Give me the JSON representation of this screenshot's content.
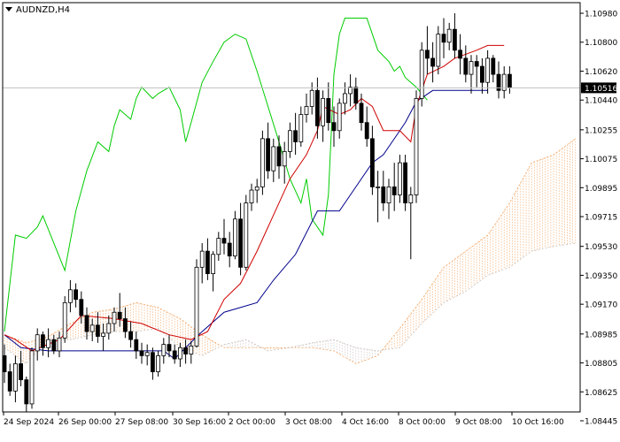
{
  "chart_data": {
    "type": "candlestick",
    "symbol": "AUDNZD,H4",
    "current_price": "1.10516",
    "y_ticks": [
      1.1098,
      1.108,
      1.1062,
      1.10516,
      1.1044,
      1.10255,
      1.10075,
      1.09895,
      1.09715,
      1.0953,
      1.0935,
      1.0917,
      1.08985,
      1.08805,
      1.08625,
      1.08445
    ],
    "ylim": [
      1.08445,
      1.1098
    ],
    "x_labels": [
      "24 Sep 2024",
      "26 Sep 00:00",
      "27 Sep 08:00",
      "30 Sep 16:00",
      "2 Oct 00:00",
      "3 Oct 08:00",
      "4 Oct 16:00",
      "8 Oct 00:00",
      "9 Oct 08:00",
      "10 Oct 16:00"
    ],
    "colors": {
      "candle_bull": "#ffffff",
      "candle_bear": "#000000",
      "tenkan": "#d00000",
      "kijun": "#00008b",
      "chikou": "#00cc00",
      "cloud_a": "#f4a460",
      "cloud_b": "#c9c0bb",
      "current_line": "#c0c0c0",
      "price_tag_bg": "#000000"
    },
    "candles": [
      [
        1.0885,
        1.0892,
        1.0868,
        1.0875
      ],
      [
        1.0875,
        1.088,
        1.086,
        1.0863
      ],
      [
        1.0863,
        1.0885,
        1.0856,
        1.088
      ],
      [
        1.088,
        1.0888,
        1.0866,
        1.087
      ],
      [
        1.087,
        1.0872,
        1.085,
        1.0855
      ],
      [
        1.0855,
        1.089,
        1.0852,
        1.0888
      ],
      [
        1.0888,
        1.0902,
        1.0882,
        1.0898
      ],
      [
        1.0898,
        1.09,
        1.0885,
        1.089
      ],
      [
        1.089,
        1.0902,
        1.0884,
        1.0895
      ],
      [
        1.0895,
        1.0898,
        1.0886,
        1.0888
      ],
      [
        1.0888,
        1.09,
        1.0884,
        1.0896
      ],
      [
        1.0896,
        1.0922,
        1.0893,
        1.0918
      ],
      [
        1.0918,
        1.0932,
        1.0912,
        1.0926
      ],
      [
        1.0926,
        1.093,
        1.0915,
        1.092
      ],
      [
        1.092,
        1.0925,
        1.0905,
        1.091
      ],
      [
        1.091,
        1.0915,
        1.0895,
        1.09
      ],
      [
        1.09,
        1.0908,
        1.0894,
        1.0904
      ],
      [
        1.0904,
        1.0912,
        1.0893,
        1.0897
      ],
      [
        1.0897,
        1.0905,
        1.0888,
        1.0899
      ],
      [
        1.0899,
        1.091,
        1.0895,
        1.0905
      ],
      [
        1.0905,
        1.0915,
        1.09,
        1.0912
      ],
      [
        1.0912,
        1.0924,
        1.0903,
        1.0908
      ],
      [
        1.0908,
        1.0915,
        1.0896,
        1.09
      ],
      [
        1.09,
        1.0906,
        1.089,
        1.0895
      ],
      [
        1.0895,
        1.09,
        1.0883,
        1.0888
      ],
      [
        1.0888,
        1.0893,
        1.088,
        1.0885
      ],
      [
        1.0885,
        1.0892,
        1.0879,
        1.0887
      ],
      [
        1.0887,
        1.089,
        1.087,
        1.0875
      ],
      [
        1.0875,
        1.0888,
        1.0872,
        1.0885
      ],
      [
        1.0885,
        1.0896,
        1.088,
        1.0892
      ],
      [
        1.0892,
        1.0898,
        1.0884,
        1.0888
      ],
      [
        1.0888,
        1.0892,
        1.088,
        1.0883
      ],
      [
        1.0883,
        1.0893,
        1.0878,
        1.089
      ],
      [
        1.089,
        1.0895,
        1.088,
        1.0886
      ],
      [
        1.0886,
        1.0894,
        1.088,
        1.0891
      ],
      [
        1.0891,
        1.0945,
        1.089,
        1.094
      ],
      [
        1.094,
        1.0955,
        1.093,
        1.095
      ],
      [
        1.095,
        1.0958,
        1.0932,
        1.0936
      ],
      [
        1.0936,
        1.095,
        1.0925,
        1.0948
      ],
      [
        1.0948,
        1.0962,
        1.0944,
        1.0958
      ],
      [
        1.0958,
        1.097,
        1.0948,
        1.0955
      ],
      [
        1.0955,
        1.0962,
        1.094,
        1.0947
      ],
      [
        1.0947,
        1.0975,
        1.0945,
        1.097
      ],
      [
        1.097,
        1.098,
        1.0935,
        1.094
      ],
      [
        1.094,
        1.0985,
        1.0938,
        1.098
      ],
      [
        1.098,
        1.0992,
        1.0975,
        1.0988
      ],
      [
        1.0988,
        1.0995,
        1.098,
        1.099
      ],
      [
        1.099,
        1.1025,
        1.0985,
        1.102
      ],
      [
        1.102,
        1.103,
        1.0995,
        1.1
      ],
      [
        1.1,
        1.102,
        1.0993,
        1.1015
      ],
      [
        1.1015,
        1.1022,
        1.0995,
        1.1003
      ],
      [
        1.1003,
        1.1018,
        1.0992,
        1.1012
      ],
      [
        1.1012,
        1.103,
        1.1008,
        1.1025
      ],
      [
        1.1025,
        1.1036,
        1.101,
        1.1018
      ],
      [
        1.1018,
        1.104,
        1.1015,
        1.1035
      ],
      [
        1.1035,
        1.1048,
        1.103,
        1.104
      ],
      [
        1.104,
        1.1055,
        1.1035,
        1.105
      ],
      [
        1.105,
        1.1058,
        1.102,
        1.1028
      ],
      [
        1.1028,
        1.105,
        1.1018,
        1.1045
      ],
      [
        1.1045,
        1.1055,
        1.1025,
        1.103
      ],
      [
        1.103,
        1.104,
        1.1015,
        1.1025
      ],
      [
        1.1025,
        1.1045,
        1.102,
        1.1042
      ],
      [
        1.1042,
        1.1055,
        1.1035,
        1.1048
      ],
      [
        1.1048,
        1.106,
        1.104,
        1.1052
      ],
      [
        1.1052,
        1.1058,
        1.1038,
        1.1042
      ],
      [
        1.1042,
        1.1048,
        1.1025,
        1.103
      ],
      [
        1.103,
        1.104,
        1.1015,
        1.102
      ],
      [
        1.102,
        1.1028,
        1.0985,
        1.099
      ],
      [
        1.099,
        1.1,
        1.0968,
        1.099
      ],
      [
        1.099,
        1.1,
        1.0975,
        1.098
      ],
      [
        1.098,
        1.0995,
        1.097,
        1.099
      ],
      [
        1.099,
        1.1005,
        1.0975,
        1.0985
      ],
      [
        1.0985,
        1.101,
        1.098,
        1.1005
      ],
      [
        1.1005,
        1.101,
        1.0975,
        1.098
      ],
      [
        1.098,
        1.099,
        1.0945,
        1.0985
      ],
      [
        1.0985,
        1.105,
        1.098,
        1.1045
      ],
      [
        1.1045,
        1.108,
        1.104,
        1.1075
      ],
      [
        1.1075,
        1.109,
        1.106,
        1.107
      ],
      [
        1.107,
        1.108,
        1.1055,
        1.1065
      ],
      [
        1.1065,
        1.109,
        1.106,
        1.1085
      ],
      [
        1.1085,
        1.1095,
        1.107,
        1.108
      ],
      [
        1.108,
        1.1092,
        1.1075,
        1.1088
      ],
      [
        1.1088,
        1.1098,
        1.107,
        1.1075
      ],
      [
        1.1075,
        1.1085,
        1.106,
        1.107
      ],
      [
        1.107,
        1.1078,
        1.1055,
        1.106
      ],
      [
        1.106,
        1.1072,
        1.1048,
        1.1068
      ],
      [
        1.1068,
        1.1072,
        1.1052,
        1.1065
      ],
      [
        1.1065,
        1.107,
        1.1048,
        1.1055
      ],
      [
        1.1055,
        1.1075,
        1.1048,
        1.107
      ],
      [
        1.107,
        1.1072,
        1.1055,
        1.106
      ],
      [
        1.106,
        1.1068,
        1.1045,
        1.105
      ],
      [
        1.105,
        1.1065,
        1.1045,
        1.106
      ],
      [
        1.106,
        1.1065,
        1.1048,
        1.1052
      ]
    ],
    "tenkan": [
      [
        0,
        1.0898
      ],
      [
        2,
        1.0895
      ],
      [
        5,
        1.0888
      ],
      [
        10,
        1.0895
      ],
      [
        14,
        1.091
      ],
      [
        20,
        1.0908
      ],
      [
        25,
        1.0905
      ],
      [
        30,
        1.0898
      ],
      [
        34,
        1.0895
      ],
      [
        37,
        1.09
      ],
      [
        40,
        1.092
      ],
      [
        43,
        1.093
      ],
      [
        46,
        1.095
      ],
      [
        48,
        1.0965
      ],
      [
        52,
        1.0995
      ],
      [
        55,
        1.101
      ],
      [
        57,
        1.1025
      ],
      [
        58,
        1.104
      ],
      [
        61,
        1.1035
      ],
      [
        63,
        1.1038
      ],
      [
        65,
        1.1045
      ],
      [
        67,
        1.104
      ],
      [
        69,
        1.1025
      ],
      [
        72,
        1.1025
      ],
      [
        74,
        1.1018
      ],
      [
        75,
        1.104
      ],
      [
        77,
        1.106
      ],
      [
        80,
        1.1065
      ],
      [
        82,
        1.107
      ],
      [
        86,
        1.1075
      ],
      [
        88,
        1.1078
      ],
      [
        91,
        1.1078
      ]
    ],
    "kijun": [
      [
        0,
        1.0898
      ],
      [
        3,
        1.089
      ],
      [
        8,
        1.0888
      ],
      [
        20,
        1.0888
      ],
      [
        29,
        1.0888
      ],
      [
        31,
        1.0883
      ],
      [
        33,
        1.089
      ],
      [
        36,
        1.09
      ],
      [
        40,
        1.0912
      ],
      [
        46,
        1.0918
      ],
      [
        49,
        1.0932
      ],
      [
        53,
        1.0948
      ],
      [
        57,
        1.0975
      ],
      [
        61,
        1.0975
      ],
      [
        64,
        1.099
      ],
      [
        67,
        1.1005
      ],
      [
        69,
        1.101
      ],
      [
        71,
        1.102
      ],
      [
        73,
        1.103
      ],
      [
        75,
        1.1043
      ],
      [
        78,
        1.105
      ],
      [
        81,
        1.105
      ],
      [
        88,
        1.105
      ]
    ],
    "chikou": [
      [
        0,
        1.09
      ],
      [
        1,
        1.093
      ],
      [
        2,
        1.096
      ],
      [
        4,
        1.0958
      ],
      [
        6,
        1.0965
      ],
      [
        7,
        1.0972
      ],
      [
        9,
        1.0955
      ],
      [
        11,
        1.0938
      ],
      [
        13,
        1.0975
      ],
      [
        15,
        1.1
      ],
      [
        17,
        1.1018
      ],
      [
        19,
        1.1012
      ],
      [
        20,
        1.1028
      ],
      [
        21,
        1.1038
      ],
      [
        23,
        1.1032
      ],
      [
        24,
        1.1045
      ],
      [
        25,
        1.1052
      ],
      [
        27,
        1.1045
      ],
      [
        28,
        1.1048
      ],
      [
        30,
        1.1052
      ],
      [
        31,
        1.1045
      ],
      [
        32,
        1.1038
      ],
      [
        33,
        1.1018
      ],
      [
        34,
        1.103
      ],
      [
        36,
        1.1055
      ],
      [
        38,
        1.1068
      ],
      [
        40,
        1.108
      ],
      [
        42,
        1.1085
      ],
      [
        44,
        1.1082
      ],
      [
        46,
        1.1062
      ],
      [
        48,
        1.104
      ],
      [
        50,
        1.1018
      ],
      [
        52,
        1.0995
      ],
      [
        54,
        1.098
      ],
      [
        55,
        1.0995
      ],
      [
        56,
        1.097
      ],
      [
        58,
        1.096
      ],
      [
        59,
        1.0985
      ],
      [
        60,
        1.106
      ],
      [
        61,
        1.1085
      ],
      [
        62,
        1.1095
      ],
      [
        63,
        1.1095
      ],
      [
        66,
        1.1095
      ],
      [
        68,
        1.1075
      ],
      [
        70,
        1.1068
      ],
      [
        71,
        1.1062
      ],
      [
        72,
        1.1065
      ],
      [
        73,
        1.1058
      ],
      [
        74,
        1.1055
      ],
      [
        75,
        1.1052
      ],
      [
        76,
        1.1048
      ],
      [
        77,
        1.1044
      ]
    ],
    "senkou_a": [
      [
        0,
        1.0898
      ],
      [
        4,
        1.0893
      ],
      [
        8,
        1.0897
      ],
      [
        12,
        1.0905
      ],
      [
        16,
        1.0912
      ],
      [
        20,
        1.0914
      ],
      [
        24,
        1.0918
      ],
      [
        28,
        1.0915
      ],
      [
        32,
        1.0908
      ],
      [
        36,
        1.0898
      ],
      [
        40,
        1.089
      ],
      [
        44,
        1.089
      ],
      [
        48,
        1.089
      ],
      [
        52,
        1.089
      ],
      [
        56,
        1.089
      ],
      [
        60,
        1.0888
      ],
      [
        64,
        1.088
      ],
      [
        68,
        1.0885
      ],
      [
        72,
        1.0902
      ],
      [
        76,
        1.092
      ],
      [
        80,
        1.094
      ],
      [
        84,
        1.095
      ],
      [
        88,
        1.096
      ],
      [
        92,
        1.098
      ],
      [
        96,
        1.1005
      ],
      [
        100,
        1.101
      ],
      [
        104,
        1.102
      ]
    ],
    "senkou_b": [
      [
        0,
        1.089
      ],
      [
        4,
        1.088
      ],
      [
        8,
        1.0895
      ],
      [
        12,
        1.0895
      ],
      [
        16,
        1.0898
      ],
      [
        20,
        1.09
      ],
      [
        24,
        1.09
      ],
      [
        28,
        1.0902
      ],
      [
        32,
        1.089
      ],
      [
        36,
        1.0885
      ],
      [
        40,
        1.0892
      ],
      [
        44,
        1.0895
      ],
      [
        48,
        1.0888
      ],
      [
        52,
        1.089
      ],
      [
        56,
        1.0893
      ],
      [
        60,
        1.0895
      ],
      [
        64,
        1.089
      ],
      [
        68,
        1.0888
      ],
      [
        72,
        1.089
      ],
      [
        76,
        1.0905
      ],
      [
        80,
        1.0918
      ],
      [
        84,
        1.0925
      ],
      [
        88,
        1.0935
      ],
      [
        92,
        1.094
      ],
      [
        96,
        1.095
      ],
      [
        100,
        1.0953
      ],
      [
        104,
        1.0955
      ]
    ]
  }
}
